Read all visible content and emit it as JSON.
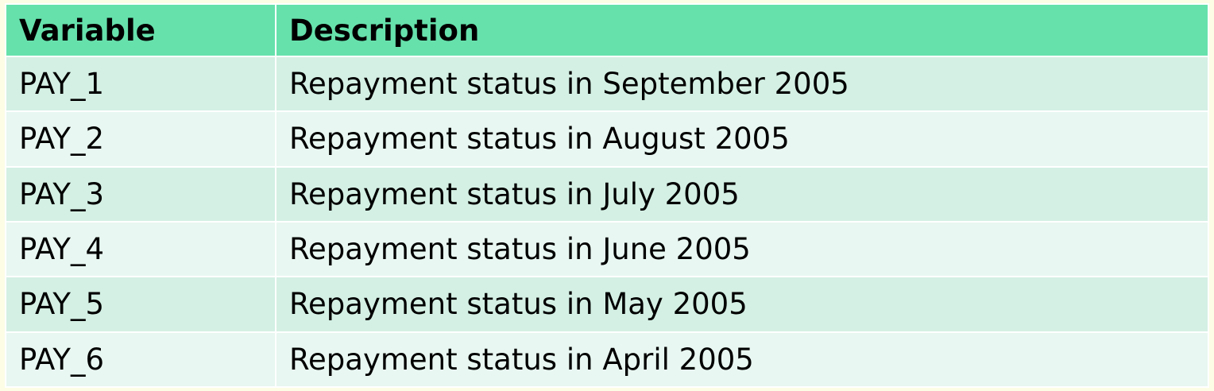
{
  "table": {
    "headers": [
      "Variable",
      "Description"
    ],
    "rows": [
      [
        "PAY_1",
        "Repayment status in September 2005"
      ],
      [
        "PAY_2",
        "Repayment status in August 2005"
      ],
      [
        "PAY_3",
        "Repayment status in July 2005"
      ],
      [
        "PAY_4",
        "Repayment status in June 2005"
      ],
      [
        "PAY_5",
        "Repayment status in May 2005"
      ],
      [
        "PAY_6",
        "Repayment status in April 2005"
      ]
    ]
  },
  "colors": {
    "header_bg": "#66e1ac",
    "row_bg_odd": "#d4f0e4",
    "row_bg_even": "#e8f7f1",
    "page_bg": "#fdfde6"
  }
}
